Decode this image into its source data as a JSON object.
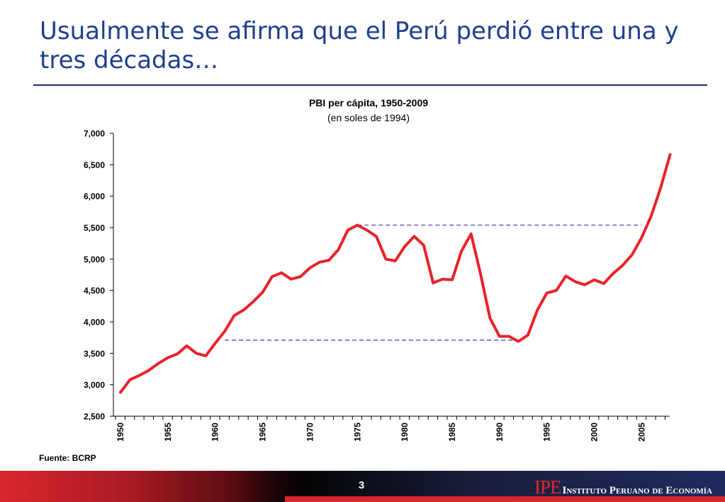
{
  "slide": {
    "title": "Usualmente se afirma que el Perú perdió entre una y tres décadas…",
    "source": "Fuente: BCRP",
    "page_number": "3",
    "brand_logo": "IPE",
    "brand_name": "Instituto Peruano de Economía",
    "colors": {
      "title": "#1f3f8f",
      "line": "#e8232b",
      "reference": "#3b3fae",
      "logo": "#e8232b"
    }
  },
  "chart_data": {
    "type": "line",
    "title": "PBI per cápita, 1950-2009",
    "subtitle": "(en soles de 1994)",
    "xlabel": "",
    "ylabel": "",
    "ylim": [
      2500,
      7000
    ],
    "yticks": [
      "2,500",
      "3,000",
      "3,500",
      "4,000",
      "4,500",
      "5,000",
      "5,500",
      "6,000",
      "6,500",
      "7,000"
    ],
    "xtick_labels": [
      "1950",
      "1955",
      "1960",
      "1965",
      "1970",
      "1975",
      "1980",
      "1985",
      "1990",
      "1995",
      "2000",
      "2005"
    ],
    "grid": false,
    "legend": "none",
    "x": [
      1950,
      1951,
      1952,
      1953,
      1954,
      1955,
      1956,
      1957,
      1958,
      1959,
      1960,
      1961,
      1962,
      1963,
      1964,
      1965,
      1966,
      1967,
      1968,
      1969,
      1970,
      1971,
      1972,
      1973,
      1974,
      1975,
      1976,
      1977,
      1978,
      1979,
      1980,
      1981,
      1982,
      1983,
      1984,
      1985,
      1986,
      1987,
      1988,
      1989,
      1990,
      1991,
      1992,
      1993,
      1994,
      1995,
      1996,
      1997,
      1998,
      1999,
      2000,
      2001,
      2002,
      2003,
      2004,
      2005,
      2006,
      2007,
      2008
    ],
    "series": [
      {
        "values": [
          2880,
          3080,
          3150,
          3230,
          3340,
          3430,
          3490,
          3620,
          3500,
          3460,
          3660,
          3850,
          4100,
          4190,
          4320,
          4470,
          4720,
          4780,
          4680,
          4720,
          4860,
          4950,
          4980,
          5150,
          5460,
          5540,
          5460,
          5360,
          5000,
          4970,
          5200,
          5360,
          5220,
          4620,
          4680,
          4670,
          5130,
          5400,
          4760,
          4060,
          3770,
          3770,
          3690,
          3790,
          4190,
          4460,
          4500,
          4730,
          4640,
          4590,
          4670,
          4610,
          4770,
          4900,
          5070,
          5340,
          5680,
          6130,
          6660
        ]
      }
    ],
    "reference_lines": [
      {
        "y": 5540,
        "x_start": 1975,
        "x_end": 2005
      },
      {
        "y": 3710,
        "x_start": 1961,
        "x_end": 1992
      }
    ]
  }
}
